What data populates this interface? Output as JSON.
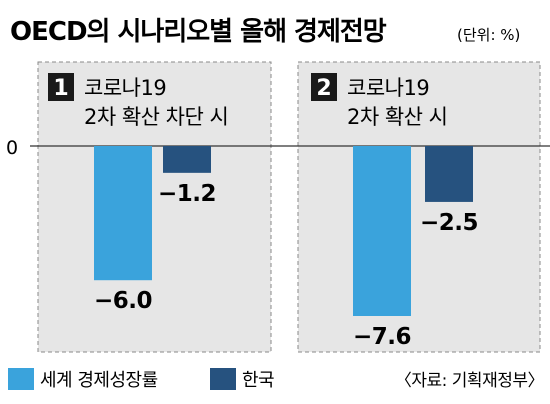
{
  "title": "OECD의 시나리오별 올해 경제전망",
  "unit": "(단위: %)",
  "source": "〈자료: 기획재정부〉",
  "colors": {
    "world": "#3aa3dc",
    "korea": "#26527f",
    "panel_bg": "#e6e6e6",
    "badge": "#1a1a1a"
  },
  "chart_data": {
    "type": "bar",
    "title": "OECD의 시나리오별 올해 경제전망",
    "unit": "(단위: %)",
    "ylim": [
      -8.5,
      0
    ],
    "y_tick_labels": [
      "0"
    ],
    "legend_position": "bottom",
    "panels": [
      {
        "number": "1",
        "line1": "코로나19",
        "line2": "2차 확산 차단 시"
      },
      {
        "number": "2",
        "line1": "코로나19",
        "line2": "2차 확산 시"
      }
    ],
    "series": [
      {
        "name": "세계 경제성장률",
        "values": [
          -6.0,
          -7.6
        ],
        "labels": [
          "−6.0",
          "−7.6"
        ],
        "color": "#3aa3dc"
      },
      {
        "name": "한국",
        "values": [
          -1.2,
          -2.5
        ],
        "labels": [
          "−1.2",
          "−2.5"
        ],
        "color": "#26527f"
      }
    ]
  }
}
